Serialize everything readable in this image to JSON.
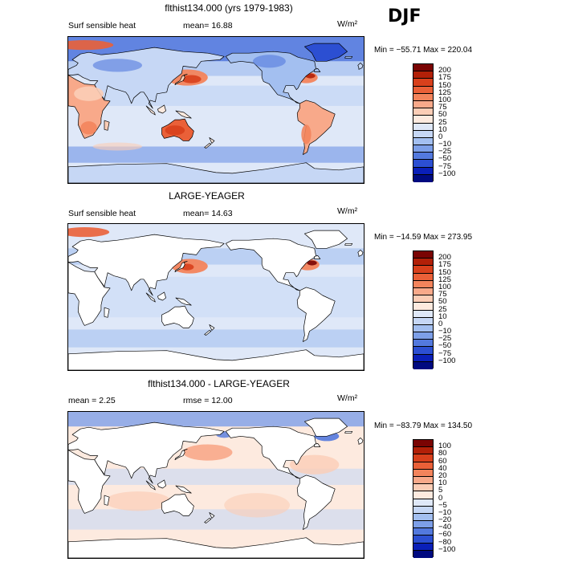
{
  "season": "DJF",
  "panels": [
    {
      "id": "p1",
      "title": "flthist134.000 (yrs 1979-1983)",
      "left_label": "Surf sensible heat",
      "right_label": "mean=  16.88",
      "units": "W/m²",
      "minmax": "Min = −55.71  Max = 220.04",
      "colorbar": {
        "labels": [
          "200",
          "175",
          "150",
          "125",
          "100",
          "75",
          "50",
          "25",
          "10",
          "0",
          "−10",
          "−25",
          "−50",
          "−75",
          "−100"
        ],
        "colors": [
          "#7a0403",
          "#b22008",
          "#d8401c",
          "#ea6038",
          "#f3845c",
          "#f8a98a",
          "#fbcdb6",
          "#fdeadf",
          "#dfe8f8",
          "#c6d7f5",
          "#a3bff0",
          "#7d9fe8",
          "#5379de",
          "#2c4fd2",
          "#0a1fb8",
          "#000a80"
        ],
        "kind": "ctrl"
      }
    },
    {
      "id": "p2",
      "title": "LARGE-YEAGER",
      "left_label": "Surf sensible heat",
      "right_label": "mean=  14.63",
      "units": "W/m²",
      "minmax": "Min = −14.59  Max = 273.95",
      "colorbar": {
        "labels": [
          "200",
          "175",
          "150",
          "125",
          "100",
          "75",
          "50",
          "25",
          "10",
          "0",
          "−10",
          "−25",
          "−50",
          "−75",
          "−100"
        ],
        "colors": [
          "#7a0403",
          "#b22008",
          "#d8401c",
          "#ea6038",
          "#f3845c",
          "#f8a98a",
          "#fbcdb6",
          "#fdeadf",
          "#dfe8f8",
          "#c6d7f5",
          "#a3bff0",
          "#7d9fe8",
          "#5379de",
          "#2c4fd2",
          "#0a1fb8",
          "#000a80"
        ],
        "kind": "obs"
      }
    },
    {
      "id": "p3",
      "title": "flthist134.000 - LARGE-YEAGER",
      "left_label": "mean =    2.25",
      "right_label": "rmse =   12.00",
      "units": "W/m²",
      "minmax": "Min = −83.79  Max = 134.50",
      "colorbar": {
        "labels": [
          "100",
          "80",
          "60",
          "40",
          "20",
          "10",
          "5",
          "0",
          "−5",
          "−10",
          "−20",
          "−40",
          "−60",
          "−80",
          "−100"
        ],
        "colors": [
          "#7a0403",
          "#b22008",
          "#d8401c",
          "#ea6038",
          "#f3845c",
          "#f8a98a",
          "#fbcdb6",
          "#fdeadf",
          "#dfe8f8",
          "#c6d7f5",
          "#a3bff0",
          "#7d9fe8",
          "#5379de",
          "#2c4fd2",
          "#0a1fb8",
          "#000a80"
        ],
        "kind": "diff"
      }
    }
  ]
}
